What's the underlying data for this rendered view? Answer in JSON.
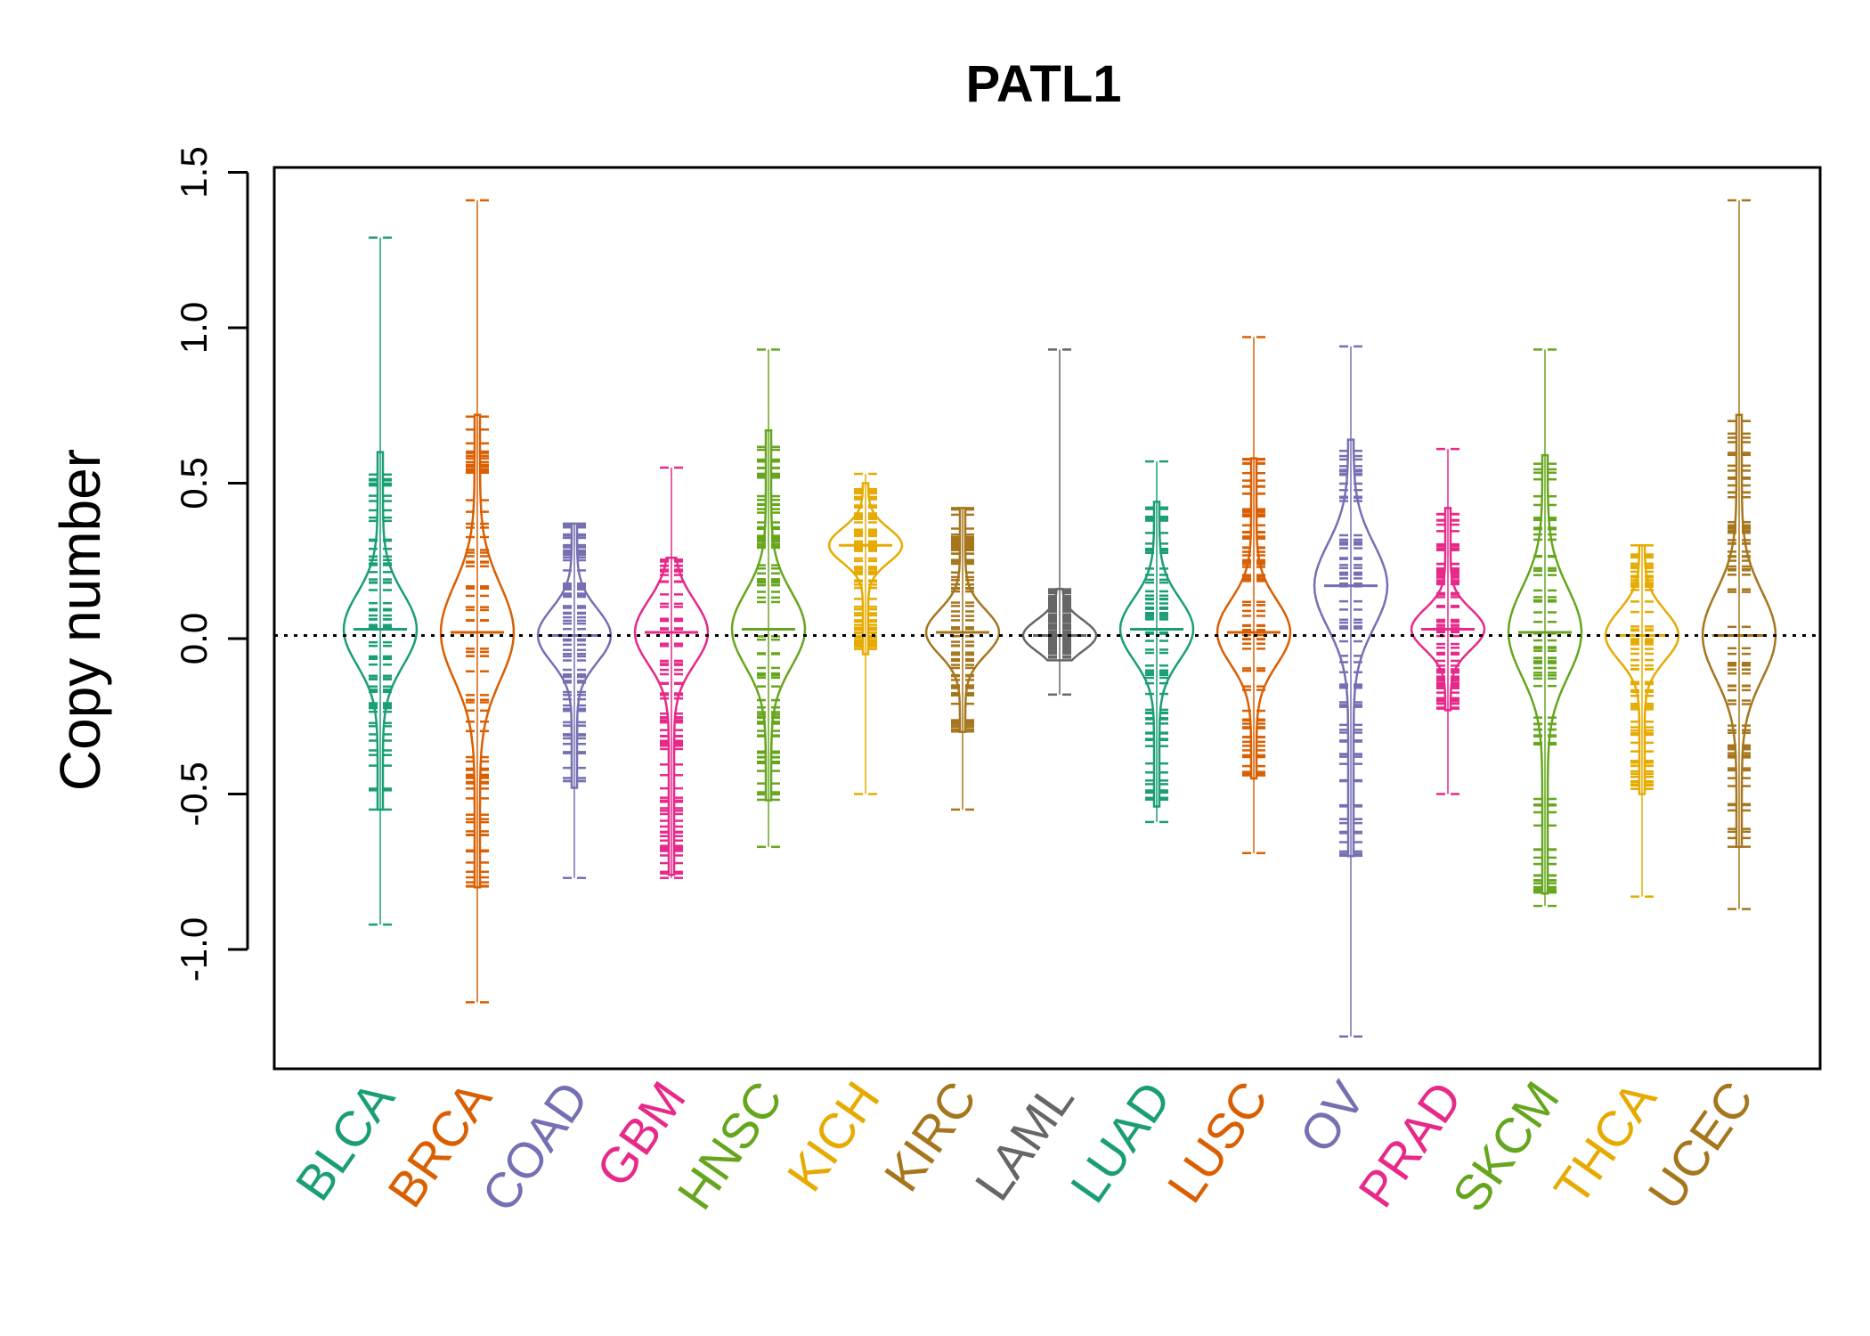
{
  "chart_data": {
    "type": "beanplot",
    "title": "PATL1",
    "xlabel": "",
    "ylabel": "Copy number",
    "ylim": [
      -1.4,
      1.5
    ],
    "yticks": [
      1.5,
      1.0,
      0.5,
      0.0,
      -0.5,
      -1.0
    ],
    "ytick_labels": [
      "1.5",
      "1.0",
      "0.5",
      "0.0",
      "-0.5",
      "-1.0"
    ],
    "reference_line": 0.01,
    "grid": false,
    "legend": "none",
    "categories": [
      "BLCA",
      "BRCA",
      "COAD",
      "GBM",
      "HNSC",
      "KICH",
      "KIRC",
      "LAML",
      "LUAD",
      "LUSC",
      "OV",
      "PRAD",
      "SKCM",
      "THCA",
      "UCEC"
    ],
    "colors": [
      "#1b9e77",
      "#d95f02",
      "#7570b3",
      "#e7298a",
      "#66a61e",
      "#e6ab02",
      "#a6761d",
      "#666666",
      "#1b9e77",
      "#d95f02",
      "#7570b3",
      "#e7298a",
      "#66a61e",
      "#e6ab02",
      "#a6761d"
    ],
    "series": [
      {
        "category": "BLCA",
        "min": -0.92,
        "max": 1.29,
        "core": [
          -0.55,
          0.6
        ],
        "mean": 0.03
      },
      {
        "category": "BRCA",
        "min": -1.17,
        "max": 1.41,
        "core": [
          -0.8,
          0.72
        ],
        "mean": 0.02
      },
      {
        "category": "COAD",
        "min": -0.77,
        "max": 0.37,
        "core": [
          -0.48,
          0.37
        ],
        "mean": 0.01
      },
      {
        "category": "GBM",
        "min": -0.77,
        "max": 0.55,
        "core": [
          -0.76,
          0.26
        ],
        "mean": 0.02
      },
      {
        "category": "HNSC",
        "min": -0.67,
        "max": 0.93,
        "core": [
          -0.52,
          0.67
        ],
        "mean": 0.03
      },
      {
        "category": "KICH",
        "min": -0.5,
        "max": 0.53,
        "core": [
          -0.05,
          0.5
        ],
        "mean": 0.3
      },
      {
        "category": "KIRC",
        "min": -0.55,
        "max": 0.42,
        "core": [
          -0.3,
          0.42
        ],
        "mean": 0.02
      },
      {
        "category": "LAML",
        "min": -0.18,
        "max": 0.93,
        "core": [
          -0.07,
          0.16
        ],
        "mean": 0.01
      },
      {
        "category": "LUAD",
        "min": -0.59,
        "max": 0.57,
        "core": [
          -0.54,
          0.44
        ],
        "mean": 0.03
      },
      {
        "category": "LUSC",
        "min": -0.69,
        "max": 0.97,
        "core": [
          -0.45,
          0.58
        ],
        "mean": 0.02
      },
      {
        "category": "OV",
        "min": -1.28,
        "max": 0.94,
        "core": [
          -0.7,
          0.64
        ],
        "mean": 0.17
      },
      {
        "category": "PRAD",
        "min": -0.5,
        "max": 0.61,
        "core": [
          -0.23,
          0.42
        ],
        "mean": 0.03
      },
      {
        "category": "SKCM",
        "min": -0.86,
        "max": 0.93,
        "core": [
          -0.82,
          0.59
        ],
        "mean": 0.02
      },
      {
        "category": "THCA",
        "min": -0.83,
        "max": 0.3,
        "core": [
          -0.5,
          0.3
        ],
        "mean": 0.01
      },
      {
        "category": "UCEC",
        "min": -0.87,
        "max": 1.41,
        "core": [
          -0.67,
          0.72
        ],
        "mean": 0.01
      }
    ]
  }
}
